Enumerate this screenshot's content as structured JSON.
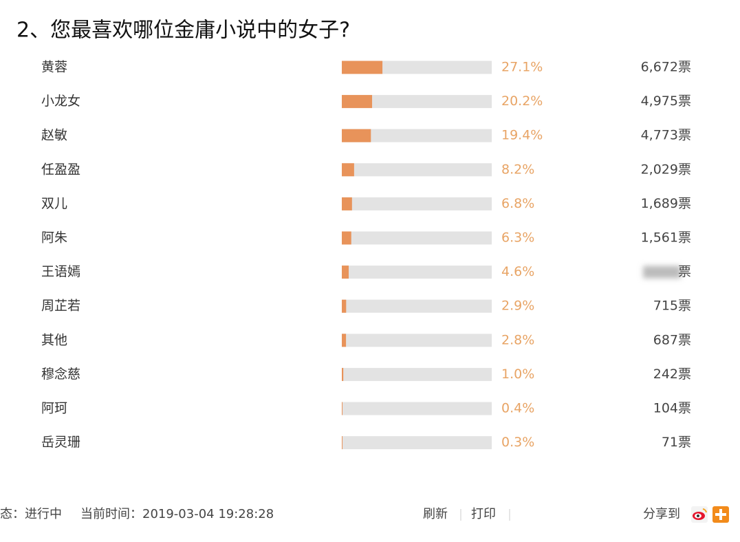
{
  "chart_data": {
    "type": "bar",
    "orientation": "horizontal",
    "title": "2、您最喜欢哪位金庸小说中的女子?",
    "categories": [
      "黄蓉",
      "小龙女",
      "赵敏",
      "任盈盈",
      "双儿",
      "阿朱",
      "王语嫣",
      "周芷若",
      "其他",
      "穆念慈",
      "阿珂",
      "岳灵珊"
    ],
    "values": [
      27.1,
      20.2,
      19.4,
      8.2,
      6.8,
      6.3,
      4.6,
      2.9,
      2.8,
      1.0,
      0.4,
      0.3
    ],
    "value_labels": [
      "27.1%",
      "20.2%",
      "19.4%",
      "8.2%",
      "6.8%",
      "6.3%",
      "4.6%",
      "2.9%",
      "2.8%",
      "1.0%",
      "0.4%",
      "0.3%"
    ],
    "votes": [
      "6,672票",
      "4,975票",
      "4,773票",
      "2,029票",
      "1,689票",
      "1,561票",
      "票",
      "715票",
      "687票",
      "242票",
      "104票",
      "71票"
    ],
    "color": "#e8935a",
    "track_color": "#e3e3e3",
    "xlim": [
      0,
      100
    ]
  },
  "footer": {
    "status": "态：进行中",
    "time": "当前时间：2019-03-04 19:28:28",
    "refresh": "刷新",
    "print": "打印",
    "share": "分享到"
  }
}
